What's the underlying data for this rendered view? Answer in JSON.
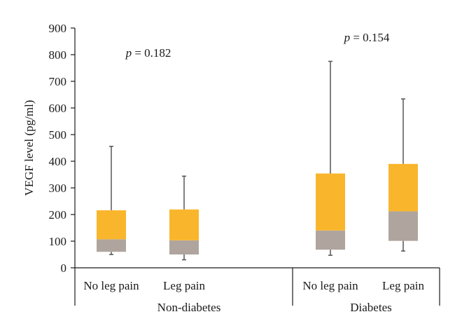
{
  "chart_data": {
    "type": "box",
    "title": "",
    "ylabel": "VEGF level (pg/ml)",
    "xlabel": "",
    "ylim": [
      0,
      900
    ],
    "yticks": [
      0,
      100,
      200,
      300,
      400,
      500,
      600,
      700,
      800,
      900
    ],
    "groups": [
      {
        "label": "Non-diabetes",
        "p_value_text": "= 0.182",
        "categories": [
          {
            "label": "No leg pain",
            "min": 50,
            "q1": 60,
            "median": 107,
            "q3": 216,
            "max": 456
          },
          {
            "label": "Leg pain",
            "min": 30,
            "q1": 50,
            "median": 103,
            "q3": 219,
            "max": 344
          }
        ]
      },
      {
        "label": "Diabetes",
        "p_value_text": "= 0.154",
        "categories": [
          {
            "label": "No leg pain",
            "min": 47,
            "q1": 68,
            "median": 140,
            "q3": 354,
            "max": 775
          },
          {
            "label": "Leg pain",
            "min": 63,
            "q1": 101,
            "median": 212,
            "q3": 390,
            "max": 634
          }
        ]
      }
    ],
    "p_symbol": "p",
    "colors": {
      "upper_box": "#F9B62C",
      "lower_box": "#AFA59E",
      "whisker": "#555555",
      "axis": "#1a1a1a"
    }
  }
}
